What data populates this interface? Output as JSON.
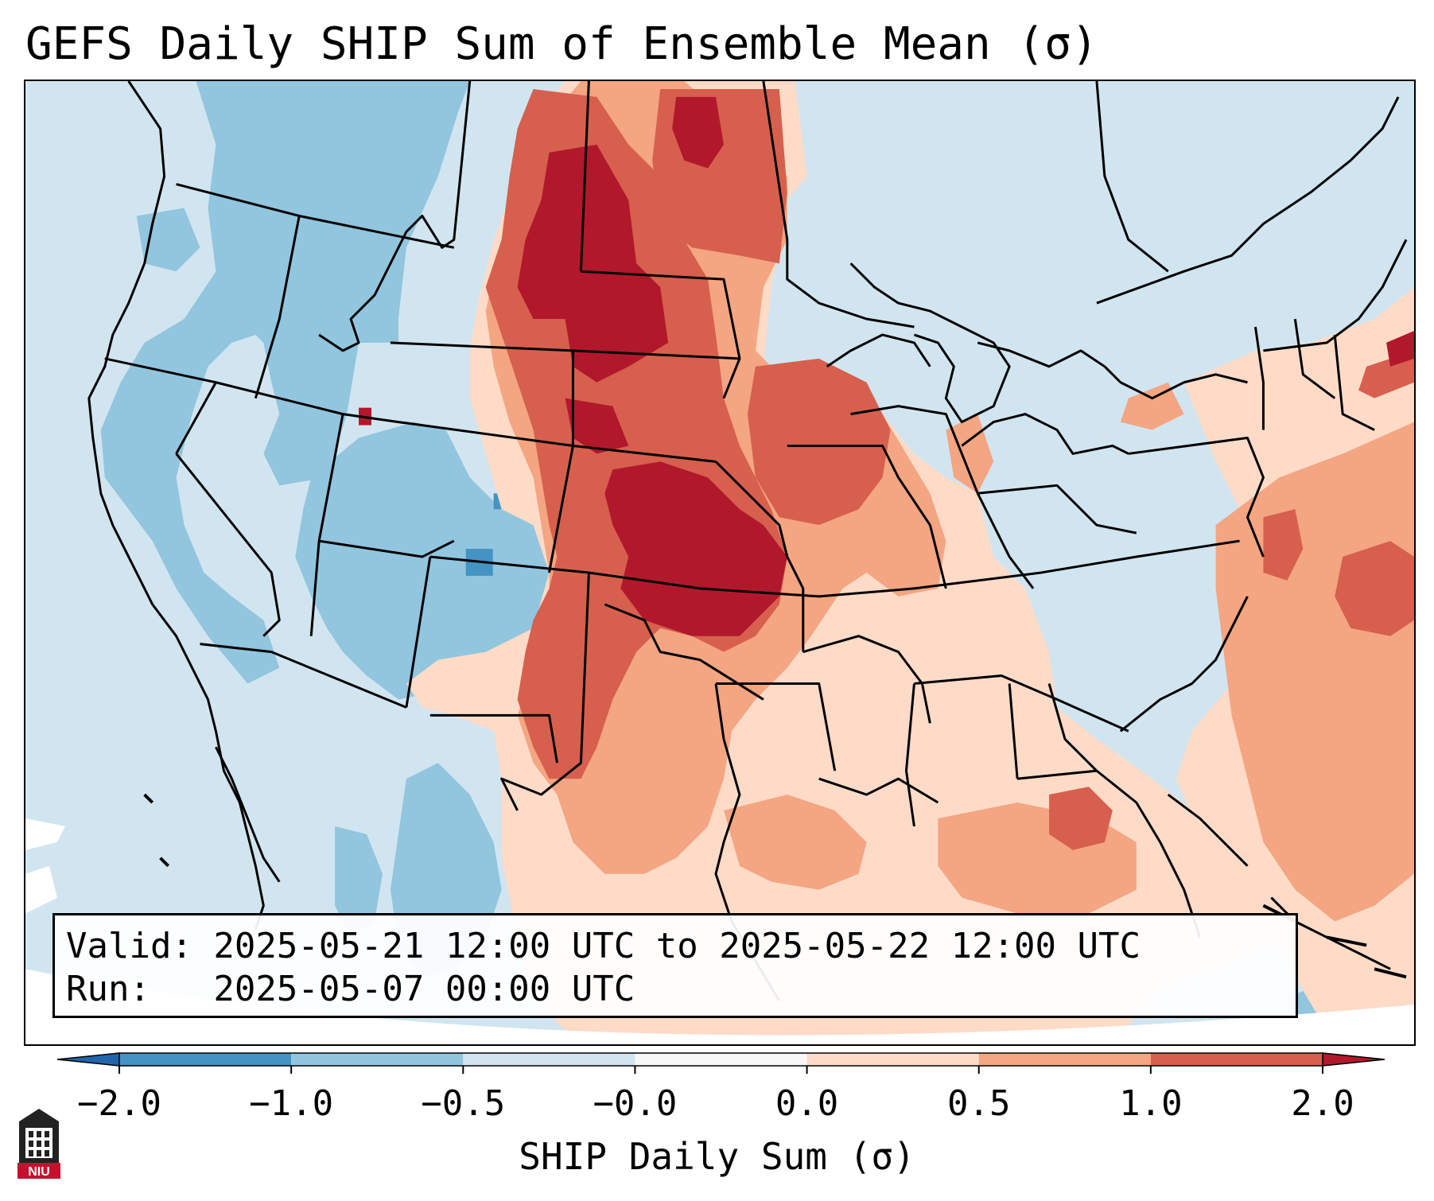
{
  "title": "GEFS Daily SHIP Sum of Ensemble Mean (σ)",
  "info": {
    "valid_line": "Valid: 2025-05-21 12:00 UTC to 2025-05-22 12:00 UTC",
    "run_line": "Run:   2025-05-07 00:00 UTC"
  },
  "colorbar": {
    "label": "SHIP Daily Sum (σ)",
    "ticks": [
      "−2.0",
      "−1.0",
      "−0.5",
      "−0.0",
      "0.0",
      "0.5",
      "1.0",
      "2.0"
    ],
    "colors": [
      "#4393c3",
      "#92c5de",
      "#d1e5f0",
      "#f7f7f7",
      "#fddbc7",
      "#f4a582",
      "#d6604d"
    ],
    "extend_low_color": "#2166ac",
    "extend_high_color": "#b2182b"
  },
  "map": {
    "projection": "lambert-conformal",
    "region": "contiguous-united-states",
    "background_color": "#d1e5f0"
  },
  "logo": {
    "text": "NIU"
  }
}
